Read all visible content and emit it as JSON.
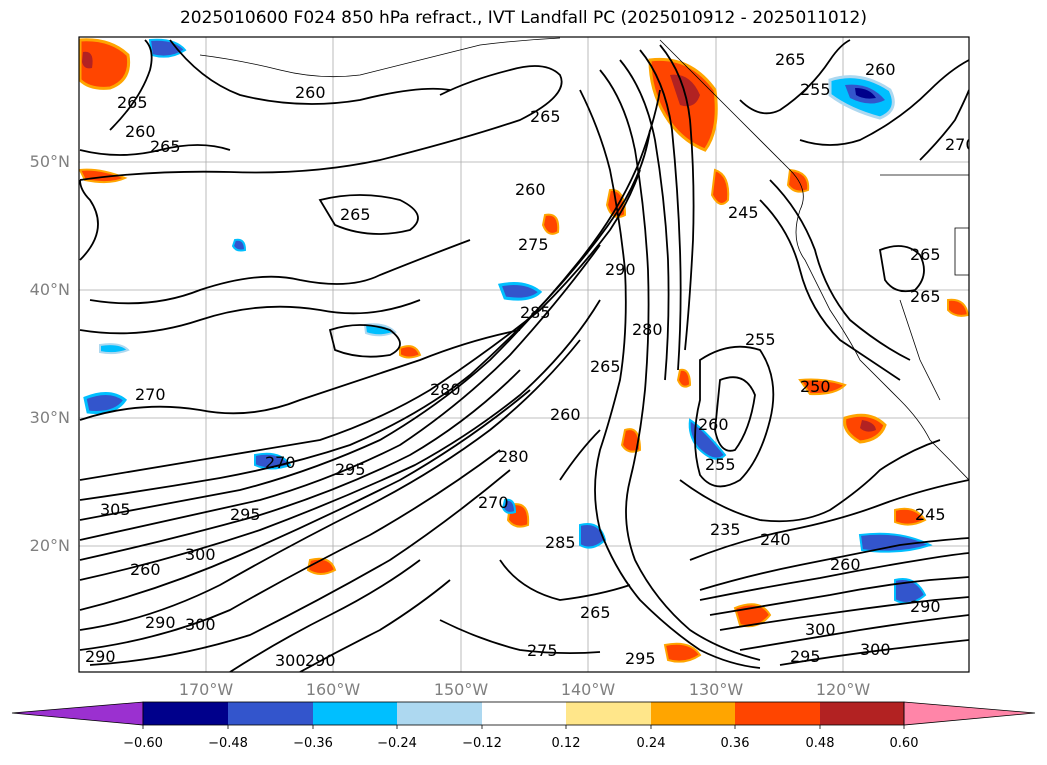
{
  "title": "2025010600 F024 850 hPa refract., IVT Landfall PC (2025010912 - 2025011012)",
  "latitude_labels": [
    "50°N",
    "40°N",
    "30°N",
    "20°N"
  ],
  "longitude_labels": [
    "170°W",
    "160°W",
    "150°W",
    "140°W",
    "130°W",
    "120°W"
  ],
  "colorbar": {
    "tick_labels": [
      "−0.60",
      "−0.48",
      "−0.36",
      "−0.24",
      "−0.12",
      "0.12",
      "0.24",
      "0.36",
      "0.48",
      "0.60"
    ],
    "colors": [
      "#9b30d0",
      "#00008b",
      "#3355cc",
      "#00bfff",
      "#add8f0",
      "#ffffff",
      "#ffe68a",
      "#ffa500",
      "#ff4500",
      "#b22222",
      "#ff85a8"
    ]
  },
  "contour_labels": [
    "265",
    "260",
    "265",
    "260",
    "265",
    "260",
    "255",
    "270",
    "265",
    "260",
    "265",
    "275",
    "290",
    "280",
    "285",
    "265",
    "280",
    "270",
    "260",
    "255",
    "245",
    "250",
    "255",
    "265",
    "265",
    "270",
    "295",
    "260",
    "295",
    "300",
    "260",
    "280",
    "270",
    "285",
    "235",
    "240",
    "245",
    "260",
    "300",
    "295",
    "290",
    "300",
    "275",
    "265",
    "295",
    "290",
    "305",
    "300",
    "290",
    "300",
    "290"
  ]
}
